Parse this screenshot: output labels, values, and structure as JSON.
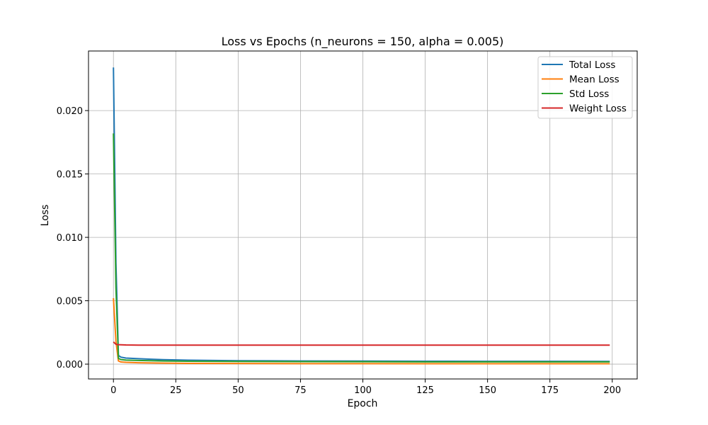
{
  "chart_data": {
    "type": "line",
    "title": "Loss vs Epochs (n_neurons = 150, alpha = 0.005)",
    "xlabel": "Epoch",
    "ylabel": "Loss",
    "xlim": [
      -10,
      210
    ],
    "ylim": [
      -0.00117,
      0.0247
    ],
    "xticks": [
      0,
      25,
      50,
      75,
      100,
      125,
      150,
      175,
      200
    ],
    "yticks": [
      0.0,
      0.005,
      0.01,
      0.015,
      0.02
    ],
    "ytick_labels": [
      "0.000",
      "0.005",
      "0.010",
      "0.015",
      "0.020"
    ],
    "grid": true,
    "legend_position": "top-right",
    "series": [
      {
        "name": "Total Loss",
        "color": "#1f77b4",
        "x": [
          0,
          1,
          2,
          3,
          5,
          10,
          15,
          20,
          30,
          50,
          75,
          100,
          125,
          150,
          175,
          199
        ],
        "y": [
          0.0234,
          0.008,
          0.00068,
          0.00055,
          0.00048,
          0.00043,
          0.00039,
          0.00035,
          0.00031,
          0.00027,
          0.00025,
          0.00024,
          0.00023,
          0.00022,
          0.00022,
          0.00021
        ]
      },
      {
        "name": "Mean Loss",
        "color": "#ff7f0e",
        "x": [
          0,
          1,
          2,
          3,
          5,
          10,
          20,
          30,
          50,
          75,
          100,
          125,
          150,
          175,
          199
        ],
        "y": [
          0.0052,
          0.0018,
          0.00025,
          0.00017,
          0.00014,
          0.00011,
          8e-05,
          6e-05,
          5e-05,
          4e-05,
          4e-05,
          3e-05,
          3e-05,
          3e-05,
          3e-05
        ]
      },
      {
        "name": "Std Loss",
        "color": "#2ca02c",
        "x": [
          0,
          1,
          2,
          3,
          5,
          10,
          15,
          20,
          30,
          50,
          75,
          100,
          125,
          150,
          175,
          199
        ],
        "y": [
          0.0182,
          0.006,
          0.00045,
          0.00036,
          0.00032,
          0.00029,
          0.00027,
          0.00025,
          0.00023,
          0.00021,
          0.0002,
          0.00019,
          0.00018,
          0.00018,
          0.00018,
          0.00018
        ]
      },
      {
        "name": "Weight Loss",
        "color": "#d62728",
        "x": [
          0,
          1,
          2,
          5,
          10,
          20,
          50,
          100,
          150,
          199
        ],
        "y": [
          0.00175,
          0.00157,
          0.00153,
          0.00151,
          0.0015,
          0.0015,
          0.0015,
          0.0015,
          0.0015,
          0.0015
        ]
      }
    ]
  }
}
